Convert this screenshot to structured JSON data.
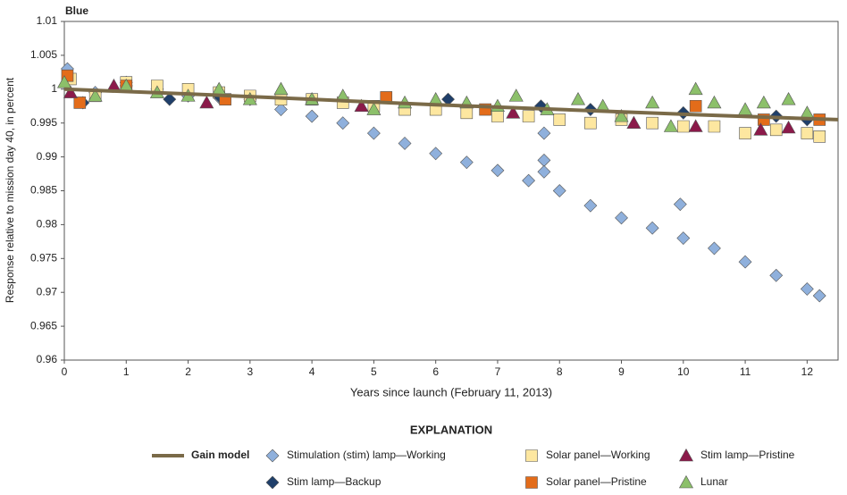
{
  "chart_data": {
    "type": "scatter",
    "title": "Blue",
    "x_label": "Years since launch (February 11, 2013)",
    "y_label": "Response relative to mission day 40, in percent",
    "legend_title": "EXPLANATION",
    "xlim": [
      0,
      12.5
    ],
    "xticks": [
      0,
      1,
      2,
      3,
      4,
      5,
      6,
      7,
      8,
      9,
      10,
      11,
      12
    ],
    "ylim": [
      0.96,
      1.01
    ],
    "yticks": [
      0.96,
      0.965,
      0.97,
      0.975,
      0.98,
      0.985,
      0.99,
      0.995,
      1,
      1.005,
      1.01
    ],
    "series": [
      {
        "name": "Gain model",
        "marker": "line",
        "color": "#7a6a48",
        "x": [
          0,
          2,
          4,
          6,
          8,
          10,
          12.5
        ],
        "values": [
          1.0,
          0.9993,
          0.9985,
          0.9977,
          0.997,
          0.9963,
          0.9955
        ]
      },
      {
        "name": "Stimulation (stim) lamp—Working",
        "marker": "diamond",
        "color": "#8fb0dc",
        "x": [
          0.05,
          0.5,
          1,
          1.5,
          2,
          2.5,
          3,
          3.5,
          4,
          4.5,
          5,
          5.5,
          6,
          6.5,
          7,
          7.5,
          7.75,
          7.75,
          7.75,
          8,
          8.5,
          9,
          9.5,
          9.95,
          10,
          10.5,
          11,
          11.5,
          12,
          12.2
        ],
        "values": [
          1.003,
          0.9995,
          1.001,
          1.0,
          0.999,
          0.9988,
          0.9985,
          0.997,
          0.996,
          0.995,
          0.9935,
          0.992,
          0.9905,
          0.9892,
          0.988,
          0.9865,
          0.9935,
          0.9895,
          0.9878,
          0.985,
          0.9828,
          0.981,
          0.9795,
          0.983,
          0.978,
          0.9765,
          0.9745,
          0.9725,
          0.9705,
          0.9695
        ]
      },
      {
        "name": "Solar panel—Working",
        "marker": "square",
        "color": "#fde7a0",
        "x": [
          0.1,
          0.5,
          1,
          1.5,
          2,
          2.5,
          3,
          3.5,
          4,
          4.5,
          5,
          5.5,
          6,
          6.5,
          7,
          7.5,
          8,
          8.5,
          9,
          9.5,
          10,
          10.5,
          11,
          11.5,
          12,
          12.2
        ],
        "values": [
          1.0015,
          0.999,
          1.001,
          1.0005,
          1.0,
          0.9995,
          0.999,
          0.9985,
          0.9985,
          0.998,
          0.9975,
          0.997,
          0.997,
          0.9965,
          0.996,
          0.996,
          0.9955,
          0.995,
          0.9955,
          0.995,
          0.9945,
          0.9945,
          0.9935,
          0.994,
          0.9935,
          0.993
        ]
      },
      {
        "name": "Stim lamp—Pristine",
        "marker": "triangle",
        "color": "#8b1a4a",
        "x": [
          0.1,
          0.8,
          2.3,
          4.8,
          7.25,
          9.2,
          10.2,
          11.25,
          11.7
        ],
        "values": [
          0.9995,
          1.0005,
          0.998,
          0.9975,
          0.9965,
          0.995,
          0.9945,
          0.994,
          0.9943
        ]
      },
      {
        "name": "Stim lamp—Backup",
        "marker": "diamond",
        "color": "#1f3f6a",
        "x": [
          0.3,
          1,
          1.7,
          2.5,
          6.2,
          7.7,
          8.5,
          10,
          11.5,
          12
        ],
        "values": [
          0.998,
          1.0005,
          0.9985,
          0.999,
          0.9985,
          0.9975,
          0.997,
          0.9965,
          0.996,
          0.9955
        ]
      },
      {
        "name": "Solar panel—Pristine",
        "marker": "square",
        "color": "#e36c1a",
        "x": [
          0.05,
          0.25,
          1,
          2.6,
          5.2,
          6.8,
          10.2,
          11.3,
          12.2
        ],
        "values": [
          1.002,
          0.998,
          1.0005,
          0.9985,
          0.9988,
          0.997,
          0.9975,
          0.9955,
          0.9955
        ]
      },
      {
        "name": "Lunar",
        "marker": "triangle",
        "color": "#8cc06a",
        "x": [
          0,
          0.5,
          1,
          1.5,
          2,
          2.5,
          3,
          3.5,
          4,
          4.5,
          5,
          5.5,
          6,
          6.5,
          7,
          7.3,
          7.8,
          8.3,
          8.7,
          9,
          9.5,
          9.8,
          10.2,
          10.5,
          11,
          11.3,
          11.7,
          12
        ],
        "values": [
          1.001,
          0.999,
          1.0005,
          0.9995,
          0.999,
          1.0,
          0.9985,
          1.0,
          0.9985,
          0.999,
          0.997,
          0.998,
          0.9985,
          0.998,
          0.9975,
          0.999,
          0.997,
          0.9985,
          0.9975,
          0.996,
          0.998,
          0.9945,
          1.0,
          0.998,
          0.997,
          0.998,
          0.9985,
          0.9965
        ]
      }
    ]
  }
}
